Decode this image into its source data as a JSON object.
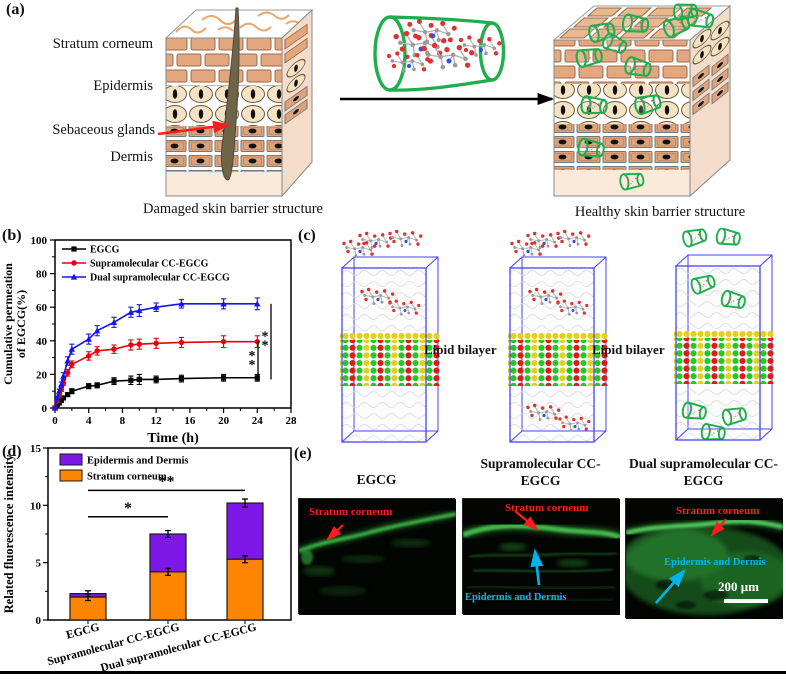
{
  "figure": {
    "panel_a": {
      "label": "(a)",
      "layers": [
        "Stratum corneum",
        "Epidermis",
        "Sebaceous glands",
        "Dermis"
      ],
      "caption_damaged": "Damaged skin barrier structure",
      "caption_healthy": "Healthy skin barrier structure"
    },
    "panel_b": {
      "label": "(b)"
    },
    "panel_c": {
      "label": "(c)",
      "lipid_label_1": "Lipid bilayer",
      "lipid_label_2": "Lipid bilayer"
    },
    "panel_d": {
      "label": "(d)"
    },
    "panel_e": {
      "label": "(e)",
      "images": [
        {
          "title": "EGCG",
          "ann_red": "Stratum corneum"
        },
        {
          "title": "Supramolecular CC-EGCG",
          "ann_red": "Stratum corneum",
          "ann_cyan": "Epidermis and Dermis"
        },
        {
          "title": "Dual supramolecular CC-EGCG",
          "ann_red": "Stratum corneum",
          "ann_cyan": "Epidermis and Dermis",
          "scale_bar": "200 μm"
        }
      ]
    }
  },
  "chart_data": [
    {
      "type": "line",
      "title": "",
      "xlabel": "Time (h)",
      "ylabel_lines": [
        "Cumulative permeation",
        "of EGCG(%)"
      ],
      "xlim": [
        0,
        28
      ],
      "ylim": [
        0,
        100
      ],
      "xticks": [
        0,
        4,
        8,
        12,
        16,
        20,
        24,
        28
      ],
      "yticks": [
        0,
        20,
        40,
        60,
        80,
        100
      ],
      "x": [
        0,
        0.25,
        0.5,
        0.75,
        1,
        1.5,
        2,
        4,
        5,
        7,
        9,
        10,
        12,
        15,
        20,
        24
      ],
      "series": [
        {
          "name": "EGCG",
          "color": "#000000",
          "marker": "square",
          "values": [
            0,
            2,
            3,
            4.5,
            6,
            8,
            10,
            13,
            13.5,
            16,
            16.5,
            17,
            17,
            17.5,
            18,
            18
          ],
          "errors": [
            0.5,
            0.8,
            0.8,
            1,
            1,
            1.2,
            1.5,
            1.5,
            1.5,
            2,
            2.5,
            3,
            2,
            2,
            2,
            2
          ]
        },
        {
          "name": "Supramolecular CC-EGCG",
          "color": "#e8000b",
          "marker": "circle",
          "values": [
            0,
            4,
            7,
            11,
            15,
            21,
            26,
            31,
            34,
            35,
            37.5,
            38,
            38.5,
            39,
            39.5,
            39.5
          ],
          "errors": [
            0.5,
            1,
            1,
            1.2,
            1.5,
            2,
            2,
            2.5,
            2.5,
            2.5,
            3,
            3,
            3,
            3,
            3.5,
            3.5
          ]
        },
        {
          "name": "Dual supramolecular CC-EGCG",
          "color": "#1515e8",
          "marker": "triangle",
          "values": [
            0,
            6,
            10,
            14,
            19,
            28,
            35,
            41,
            46,
            51,
            57,
            58,
            60,
            62,
            62,
            62
          ],
          "errors": [
            0.5,
            1,
            1.2,
            1.5,
            2,
            2.5,
            3,
            3,
            3,
            3,
            3,
            3.5,
            2.5,
            2.5,
            3,
            3.5
          ]
        }
      ],
      "significance": [
        {
          "label": "**",
          "x": 271,
          "from": 62,
          "to": 17
        },
        {
          "label": "**",
          "x": 258,
          "from": 40,
          "to": 16
        }
      ],
      "legend_position": "top-left",
      "grid": false
    },
    {
      "type": "bar",
      "stacked": true,
      "ylabel": "Related fluorescence intensity",
      "ylim": [
        0,
        15
      ],
      "yticks": [
        0,
        5,
        10,
        15
      ],
      "categories": [
        "EGCG",
        "Supramolecular CC-EGCG",
        "Dual supramolecular CC-EGCG"
      ],
      "series": [
        {
          "name": "Stratum corneum",
          "color": "#ff8400",
          "values": [
            2.0,
            4.2,
            5.3
          ],
          "errors": [
            0.3,
            0.3,
            0.3
          ]
        },
        {
          "name": "Epidermis and Dermis",
          "color": "#7d18e8",
          "values": [
            0.3,
            3.3,
            4.9
          ],
          "totals": [
            2.3,
            7.5,
            10.2
          ],
          "errors": [
            0.25,
            0.3,
            0.35
          ]
        }
      ],
      "legend": [
        {
          "label": "Epidermis and Dermis",
          "color": "#7d18e8"
        },
        {
          "label": "Stratum corneum",
          "color": "#ff8400"
        }
      ],
      "significance": [
        {
          "label": "*",
          "from_cat": 0,
          "to_cat": 1,
          "value": 9
        },
        {
          "label": "**",
          "from_cat": 0,
          "to_cat": 2,
          "value": 11.3
        }
      ],
      "legend_position": "top-left",
      "grid": false
    }
  ],
  "colors": {
    "accent_green": "#1fae4e",
    "annotation_red": "#ff1c1c",
    "annotation_cyan": "#00b4f0",
    "bar_orange": "#ff8400",
    "bar_purple": "#7d18e8"
  }
}
